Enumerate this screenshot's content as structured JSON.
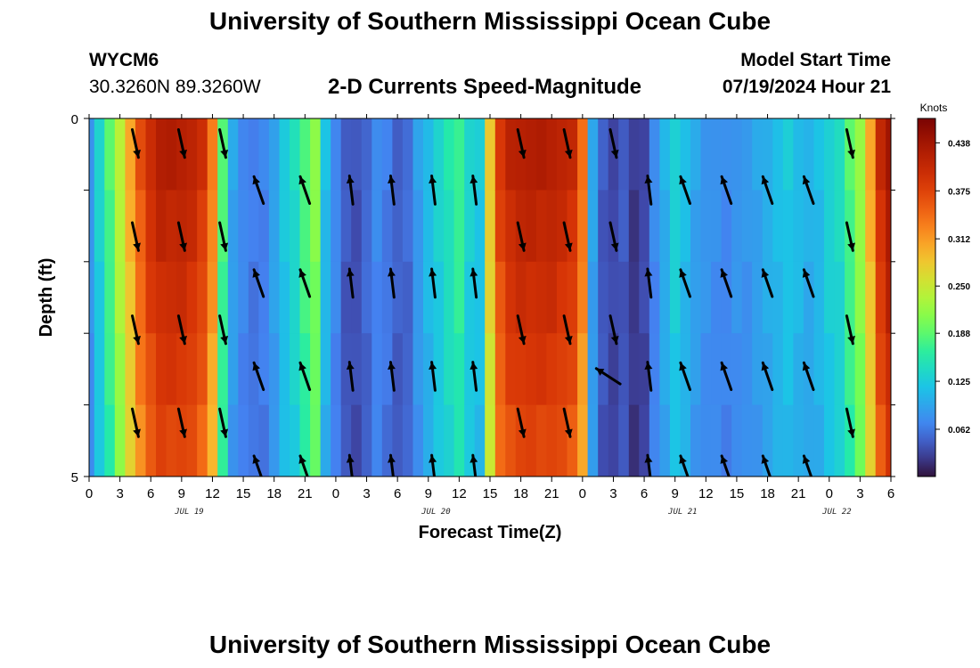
{
  "header": {
    "title": "University of Southern Mississippi Ocean Cube",
    "station_id": "WYCM6",
    "station_coords": "30.3260N  89.3260W",
    "subtitle": "2-D Currents Speed-Magnitude",
    "model_label": "Model Start Time",
    "model_time": "07/19/2024 Hour 21"
  },
  "footer": {
    "title": "University of Southern Mississippi Ocean Cube"
  },
  "chart_data": {
    "type": "heatmap",
    "title": "2-D Currents Speed-Magnitude",
    "xlabel": "Forecast Time(Z)",
    "ylabel": "Depth (ft)",
    "x_hours_range": [
      0,
      78
    ],
    "ylim": [
      0,
      5
    ],
    "x_ticks": [
      "0",
      "3",
      "6",
      "9",
      "12",
      "15",
      "18",
      "21",
      "0",
      "3",
      "6",
      "9",
      "12",
      "15",
      "18",
      "21",
      "0",
      "3",
      "6",
      "9",
      "12",
      "15",
      "18",
      "21",
      "0",
      "3",
      "6"
    ],
    "x_tick_hours": [
      0,
      3,
      6,
      9,
      12,
      15,
      18,
      21,
      24,
      27,
      30,
      33,
      36,
      39,
      42,
      45,
      48,
      51,
      54,
      57,
      60,
      63,
      66,
      69,
      72,
      75,
      78
    ],
    "date_labels": [
      {
        "label": "JUL 19",
        "hour": 12
      },
      {
        "label": "JUL 20",
        "hour": 36
      },
      {
        "label": "JUL 21",
        "hour": 60
      },
      {
        "label": "JUL 22",
        "hour": 75
      }
    ],
    "y_ticks": [
      "0",
      "5"
    ],
    "y_tick_values": [
      0,
      5
    ],
    "colorbar": {
      "label": "Knots",
      "ticks": [
        "0.438",
        "0.375",
        "0.312",
        "0.250",
        "0.188",
        "0.125",
        "0.062"
      ],
      "tick_values": [
        0.438,
        0.375,
        0.312,
        0.25,
        0.188,
        0.125,
        0.062
      ],
      "range": [
        0,
        0.47
      ]
    },
    "speed_profile": {
      "hours": [
        0,
        1,
        2,
        3,
        4,
        5,
        6,
        7,
        8,
        9,
        10,
        11,
        12,
        13,
        14,
        15,
        16,
        17,
        18,
        19,
        20,
        21,
        22,
        23,
        24,
        25,
        26,
        27,
        28,
        29,
        30,
        31,
        32,
        33,
        34,
        35,
        36,
        37,
        38,
        39,
        40,
        41,
        42,
        43,
        44,
        45,
        46,
        47,
        48,
        49,
        50,
        51,
        52,
        53,
        54,
        55,
        56,
        57,
        58,
        59,
        60,
        61,
        62,
        63,
        64,
        65,
        66,
        67,
        68,
        69,
        70,
        71,
        72,
        73,
        74,
        75,
        76,
        77,
        78
      ],
      "values": [
        0.08,
        0.13,
        0.18,
        0.24,
        0.3,
        0.36,
        0.4,
        0.42,
        0.42,
        0.42,
        0.41,
        0.39,
        0.33,
        0.18,
        0.09,
        0.07,
        0.06,
        0.065,
        0.09,
        0.12,
        0.14,
        0.18,
        0.21,
        0.11,
        0.07,
        0.04,
        0.035,
        0.05,
        0.07,
        0.06,
        0.045,
        0.05,
        0.085,
        0.11,
        0.13,
        0.15,
        0.17,
        0.13,
        0.12,
        0.28,
        0.38,
        0.41,
        0.42,
        0.42,
        0.42,
        0.42,
        0.41,
        0.4,
        0.34,
        0.09,
        0.04,
        0.03,
        0.04,
        0.02,
        0.03,
        0.07,
        0.1,
        0.13,
        0.11,
        0.09,
        0.08,
        0.075,
        0.07,
        0.08,
        0.08,
        0.09,
        0.1,
        0.11,
        0.12,
        0.11,
        0.1,
        0.11,
        0.13,
        0.14,
        0.18,
        0.22,
        0.3,
        0.4,
        0.44
      ]
    },
    "depth_rows": 5,
    "arrow_rows": [
      0.35,
      1.0,
      1.65,
      2.3,
      2.95,
      3.6,
      4.25,
      4.9
    ],
    "arrows": [
      {
        "hour": 4.5,
        "dir": "down",
        "rows": [
          0,
          2,
          4,
          6
        ]
      },
      {
        "hour": 9,
        "dir": "down",
        "rows": [
          0,
          2,
          4,
          6
        ]
      },
      {
        "hour": 13,
        "dir": "down",
        "rows": [
          0,
          2,
          4,
          6
        ]
      },
      {
        "hour": 16.5,
        "dir": "up-left",
        "rows": [
          1,
          3,
          5,
          7
        ]
      },
      {
        "hour": 21,
        "dir": "up-left",
        "rows": [
          1,
          3,
          5,
          7
        ]
      },
      {
        "hour": 25.5,
        "dir": "up",
        "rows": [
          1,
          3,
          5,
          7
        ]
      },
      {
        "hour": 29.5,
        "dir": "up",
        "rows": [
          1,
          3,
          5,
          7
        ]
      },
      {
        "hour": 33.5,
        "dir": "up",
        "rows": [
          1,
          3,
          5,
          7
        ]
      },
      {
        "hour": 37.5,
        "dir": "up",
        "rows": [
          1,
          3,
          5,
          7
        ]
      },
      {
        "hour": 42,
        "dir": "down",
        "rows": [
          0,
          2,
          4,
          6
        ]
      },
      {
        "hour": 46.5,
        "dir": "down",
        "rows": [
          0,
          2,
          4,
          6
        ]
      },
      {
        "hour": 51,
        "dir": "down",
        "rows": [
          0,
          2,
          4
        ]
      },
      {
        "hour": 50.5,
        "dir": "nw",
        "rows": [
          5
        ]
      },
      {
        "hour": 54.5,
        "dir": "up",
        "rows": [
          1,
          3,
          5,
          7
        ]
      },
      {
        "hour": 58,
        "dir": "up-left",
        "rows": [
          1,
          3,
          5,
          7
        ]
      },
      {
        "hour": 62,
        "dir": "up-left",
        "rows": [
          1,
          3,
          5,
          7
        ]
      },
      {
        "hour": 66,
        "dir": "up-left",
        "rows": [
          1,
          3,
          5,
          7
        ]
      },
      {
        "hour": 70,
        "dir": "up-left",
        "rows": [
          1,
          3,
          5,
          7
        ]
      },
      {
        "hour": 74,
        "dir": "down",
        "rows": [
          0,
          2,
          4,
          6
        ]
      }
    ]
  }
}
